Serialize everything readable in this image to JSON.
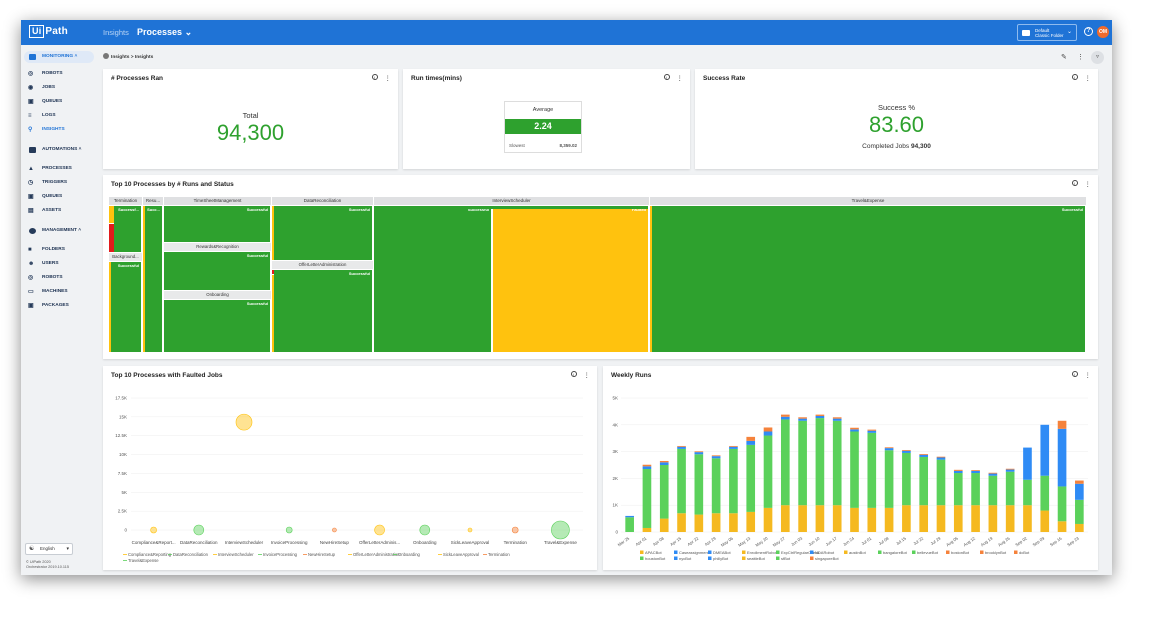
{
  "topbar": {
    "logo_box": "Ui",
    "logo_text": "Path",
    "nav_insights": "Insights",
    "nav_processes": "Processes",
    "folder_line1": "Default",
    "folder_line2": "Classic Folder",
    "help": "?",
    "avatar": "OM"
  },
  "sidebar": {
    "monitoring": "MONITORING",
    "monitoring_items": [
      "ROBOTS",
      "JOBS",
      "QUEUES",
      "LOGS",
      "INSIGHTS"
    ],
    "automations": "AUTOMATIONS",
    "automations_items": [
      "PROCESSES",
      "TRIGGERS",
      "QUEUES",
      "ASSETS"
    ],
    "management": "MANAGEMENT",
    "management_items": [
      "FOLDERS",
      "USERS",
      "ROBOTS",
      "MACHINES",
      "PACKAGES"
    ],
    "language": "English",
    "copyright1": "© UiPath 2020",
    "copyright2": "Orchestrator 2019.10.115"
  },
  "breadcrumb": "Insights > Insights",
  "cards": {
    "processes_ran": {
      "title": "# Processes Ran",
      "label": "Total",
      "value": "94,300"
    },
    "run_times": {
      "title": "Run times(mins)",
      "avg_label": "Average",
      "avg_value": "2.24",
      "slowest_label": "Slowest",
      "slowest_value": "8,359.02"
    },
    "success_rate": {
      "title": "Success Rate",
      "label": "Success %",
      "value": "83.60",
      "completed_label": "Completed Jobs",
      "completed_value": "94,300"
    },
    "treemap": {
      "title": "Top 10 Processes by # Runs and Status"
    },
    "faulted": {
      "title": "Top 10 Processes with Faulted Jobs"
    },
    "weekly": {
      "title": "Weekly Runs"
    }
  },
  "colors": {
    "success": "#2ea12e",
    "faulted": "#ffc20e",
    "stopped": "#e21b1b",
    "brand": "#1f73d6"
  },
  "treemap_data": {
    "groups": [
      {
        "name": "Termination",
        "subs": [
          {
            "name": "Termination",
            "status": [
              {
                "s": "Successf...",
                "v": 2
              },
              {
                "s": "",
                "v": 0.15
              },
              {
                "s": "",
                "v": 0.2
              }
            ]
          },
          {
            "name": "Background...",
            "status": [
              {
                "s": "Successful",
                "v": 4
              }
            ]
          }
        ]
      },
      {
        "name": "Resu...",
        "subs": [
          {
            "name": "Resu...",
            "status": [
              {
                "s": "Succ...",
                "v": 1
              }
            ]
          }
        ]
      },
      {
        "name": "TimeSheetManagement",
        "subs": [
          {
            "name": "TimeSheetManagement",
            "status": [
              {
                "s": "Successful",
                "v": 1
              }
            ]
          },
          {
            "name": "Rewards&Recognition",
            "status": [
              {
                "s": "Successful",
                "v": 1
              }
            ]
          },
          {
            "name": "Onboarding",
            "status": [
              {
                "s": "Successful",
                "v": 1.3
              }
            ]
          }
        ]
      },
      {
        "name": "DataReconciliation",
        "subs": [
          {
            "name": "DataReconciliation",
            "status": [
              {
                "s": "Successful",
                "v": 1
              }
            ]
          },
          {
            "name": "OfferLetterAdministration",
            "status": [
              {
                "s": "Successful",
                "v": 1.3
              }
            ]
          }
        ]
      },
      {
        "name": "InterviewScheduler",
        "subs": [
          {
            "name": "InterviewScheduler",
            "status": [
              {
                "s": "Successful",
                "v": 1
              },
              {
                "s": "Faulted",
                "v": 1.33
              }
            ]
          }
        ]
      },
      {
        "name": "Travel&Expense",
        "subs": [
          {
            "name": "Travel&Expense",
            "status": [
              {
                "s": "Successful",
                "v": 1
              }
            ]
          }
        ]
      }
    ]
  },
  "chart_data": [
    {
      "type": "scatter",
      "title": "Top 10 Processes with Faulted Jobs",
      "categories": [
        "Compliance&Report...",
        "DataReconciliation",
        "InterviewScheduler",
        "InvoiceProcessing",
        "NewHireSetup",
        "OfferLetterAdminis...",
        "Onboarding",
        "SickLeaveApproval",
        "Termination",
        "Travel&Expense"
      ],
      "values": [
        0,
        0,
        14300,
        0,
        0,
        0,
        0,
        0,
        0,
        0
      ],
      "sizes": [
        3,
        5,
        8,
        3,
        2,
        5,
        5,
        2,
        3,
        9
      ],
      "colors": [
        "#ffc20e",
        "#5bd15b",
        "#ffc20e",
        "#5bd15b",
        "#f5823b",
        "#ffc20e",
        "#5bd15b",
        "#ffc20e",
        "#f5823b",
        "#5bd15b"
      ],
      "yticks": [
        "17.5K",
        "15K",
        "12.5K",
        "10K",
        "7.5K",
        "5K",
        "2.5K",
        "0"
      ],
      "ylim": [
        0,
        17500
      ],
      "legend": [
        "Compliance&Reporting",
        "DataReconciliation",
        "InterviewScheduler",
        "InvoiceProcessing",
        "NewHireSetup",
        "OfferLetterAdministration",
        "Onboarding",
        "SickLeaveApproval",
        "Termination",
        "Travel&Expense"
      ]
    },
    {
      "type": "bar",
      "stacked": true,
      "title": "Weekly Runs",
      "categories": [
        "Mar 25",
        "Apr 01",
        "Apr 08",
        "Apr 15",
        "Apr 22",
        "Apr 29",
        "May 06",
        "May 13",
        "May 20",
        "May 27",
        "Jun 03",
        "Jun 10",
        "Jun 17",
        "Jun 24",
        "Jul 01",
        "Jul 08",
        "Jul 15",
        "Jul 22",
        "Jul 29",
        "Aug 05",
        "Aug 12",
        "Aug 19",
        "Aug 26",
        "Sep 02",
        "Sep 09",
        "Sep 16",
        "Sep 23"
      ],
      "yticks": [
        "5K",
        "4K",
        "3K",
        "2K",
        "1K",
        "0"
      ],
      "ylim": [
        0,
        5000
      ],
      "series": [
        {
          "name": "houstonBot",
          "color": "#5bd15b",
          "values": [
            0,
            0,
            0,
            0,
            0,
            0,
            0,
            0,
            0,
            0,
            0,
            0,
            0,
            0,
            0,
            0,
            0,
            0,
            0,
            0,
            0,
            0,
            0,
            0,
            0,
            0,
            0
          ]
        },
        {
          "name": "APACBot",
          "color": "#f5b920",
          "values": [
            0,
            150,
            500,
            700,
            650,
            700,
            700,
            750,
            900,
            1000,
            1000,
            1000,
            1000,
            900,
            900,
            900,
            1000,
            1000,
            1000,
            1000,
            1000,
            1000,
            1000,
            1000,
            800,
            400,
            300
          ]
        },
        {
          "name": "Caseassignment",
          "color": "#5bd15b",
          "values": [
            550,
            2200,
            2000,
            2400,
            2250,
            2050,
            2400,
            2500,
            2700,
            3200,
            3150,
            3250,
            3150,
            2850,
            2800,
            2150,
            1950,
            1800,
            1700,
            1200,
            1200,
            1100,
            1250,
            950,
            1300,
            1300,
            900
          ]
        },
        {
          "name": "EnrollmentRobot",
          "color": "#2f8bf5",
          "values": [
            50,
            100,
            100,
            80,
            80,
            80,
            80,
            150,
            150,
            100,
            80,
            80,
            80,
            80,
            80,
            80,
            80,
            80,
            80,
            80,
            80,
            80,
            80,
            1200,
            1900,
            2150,
            600
          ]
        },
        {
          "name": "ExpCtrlRegularCheck",
          "color": "#f5823b",
          "values": [
            0,
            60,
            50,
            30,
            30,
            30,
            30,
            150,
            150,
            80,
            50,
            50,
            50,
            60,
            40,
            30,
            30,
            30,
            30,
            40,
            30,
            30,
            30,
            0,
            0,
            300,
            120
          ]
        }
      ],
      "legend": [
        "APACBot",
        "Caseassignment",
        "DMEABot",
        "EnrollmentRobot",
        "ExpCtrlRegularCheck",
        "NDARobot",
        "austinBot",
        "bangaloreBot",
        "bellevueBot",
        "bostonBot",
        "brooklynBot",
        "dcBot",
        "houstonBot",
        "nycBot",
        "phillyBot",
        "seattleBot",
        "sfBot",
        "singaporeBot"
      ],
      "legend_colors": [
        "#f5b920",
        "#2f8bf5",
        "#2f8bf5",
        "#f5b920",
        "#5bd15b",
        "#2f8bf5",
        "#f5b920",
        "#5bd15b",
        "#5bd15b",
        "#f5823b",
        "#f5823b",
        "#f5823b",
        "#5bd15b",
        "#2f8bf5",
        "#2f8bf5",
        "#f5b920",
        "#5bd15b",
        "#f5823b"
      ]
    }
  ]
}
